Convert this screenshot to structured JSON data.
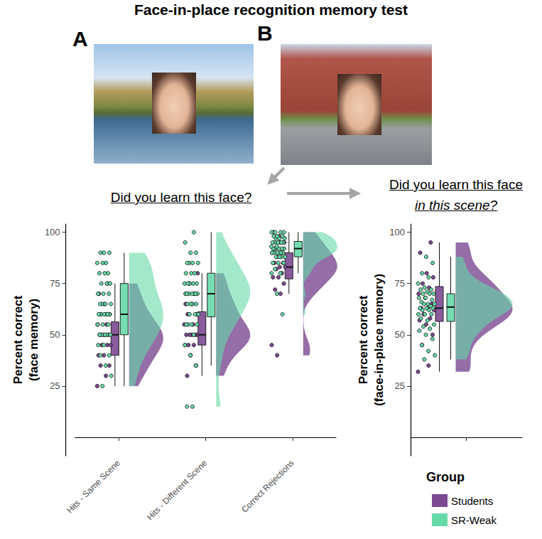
{
  "figure": {
    "title": "Face-in-place recognition memory test",
    "panel_labels": [
      "A",
      "B"
    ],
    "question_1": "Did you learn this face?",
    "question_2": [
      "Did you learn this face",
      "in this scene?"
    ],
    "legend_title": "Group"
  },
  "chart_data": [
    {
      "type": "raincloud",
      "y_label": "Percent correct (face memory)",
      "categories": [
        "Hits - Same Scene",
        "Hits - Different Scene",
        "Correct Rejections"
      ],
      "ylim": [
        -9,
        104
      ],
      "yticks": [
        25,
        50,
        75,
        100
      ],
      "grid": false,
      "series": [
        {
          "name": "Students",
          "color": "#7b4a91",
          "values": [
            [
              25,
              30,
              35,
              35,
              40,
              40,
              45,
              45,
              45,
              50,
              50,
              50,
              50,
              55,
              55,
              60,
              60,
              65,
              70,
              75
            ],
            [
              30,
              35,
              40,
              45,
              45,
              45,
              50,
              50,
              50,
              50,
              50,
              55,
              55,
              60,
              60,
              65,
              65,
              70,
              75,
              80
            ],
            [
              40,
              45,
              70,
              72,
              75,
              78,
              78,
              80,
              82,
              83,
              83,
              85,
              85,
              88,
              90,
              90,
              92,
              95,
              98,
              100
            ]
          ]
        },
        {
          "name": "SR-Weak",
          "color": "#66d9a8",
          "values": [
            [
              25,
              30,
              35,
              40,
              40,
              45,
              45,
              50,
              50,
              50,
              50,
              50,
              55,
              55,
              55,
              60,
              60,
              60,
              60,
              60,
              60,
              65,
              65,
              65,
              65,
              70,
              70,
              70,
              75,
              75,
              75,
              80,
              80,
              80,
              85,
              85,
              85,
              90,
              90,
              90
            ],
            [
              15,
              15,
              35,
              40,
              45,
              50,
              55,
              55,
              55,
              55,
              60,
              60,
              60,
              65,
              65,
              65,
              65,
              70,
              70,
              70,
              70,
              70,
              70,
              70,
              75,
              75,
              75,
              75,
              75,
              80,
              80,
              80,
              85,
              85,
              85,
              85,
              90,
              90,
              95,
              100
            ],
            [
              60,
              70,
              80,
              80,
              82,
              85,
              85,
              85,
              88,
              88,
              88,
              88,
              90,
              90,
              90,
              90,
              90,
              92,
              92,
              92,
              92,
              92,
              93,
              93,
              95,
              95,
              95,
              95,
              95,
              95,
              97,
              97,
              97,
              98,
              98,
              98,
              100,
              100,
              100,
              100
            ]
          ]
        }
      ]
    },
    {
      "type": "raincloud",
      "y_label": "Percent correct (face-in-place memory)",
      "categories": [
        null
      ],
      "ylim": [
        -9,
        104
      ],
      "yticks": [
        25,
        50,
        75,
        100
      ],
      "grid": false,
      "legend": "bottom-right",
      "series": [
        {
          "name": "Students",
          "color": "#7b4a91",
          "values": [
            [
              32,
              35,
              45,
              50,
              55,
              57,
              58,
              60,
              62,
              63,
              63,
              65,
              68,
              70,
              73,
              75,
              78,
              80,
              90,
              95
            ]
          ]
        },
        {
          "name": "SR-Weak",
          "color": "#66d9a8",
          "values": [
            [
              38,
              40,
              42,
              45,
              48,
              50,
              52,
              53,
              54,
              55,
              57,
              58,
              60,
              60,
              60,
              62,
              62,
              63,
              63,
              63,
              64,
              65,
              65,
              65,
              66,
              67,
              68,
              68,
              70,
              70,
              70,
              71,
              72,
              72,
              73,
              75,
              78,
              80,
              85,
              88
            ]
          ]
        }
      ]
    }
  ]
}
